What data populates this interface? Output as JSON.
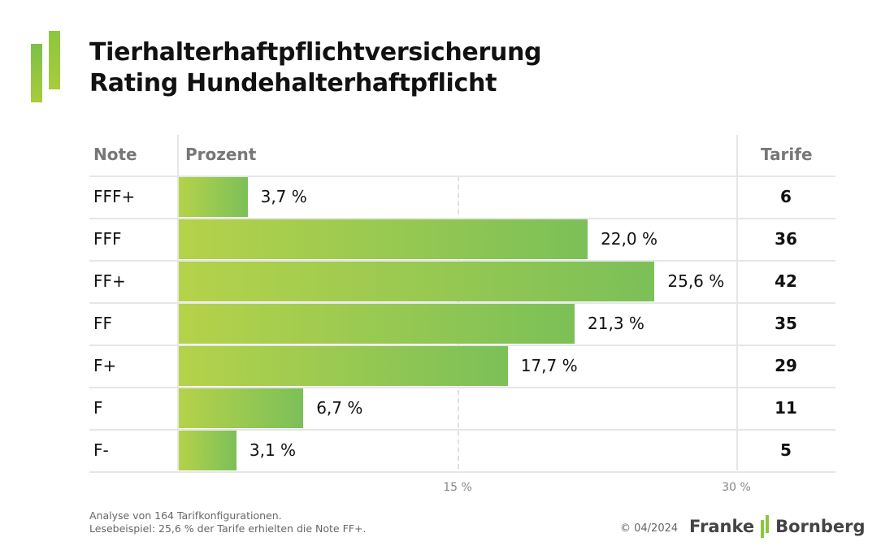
{
  "title": {
    "line1": "Tierhalterhaftpflichtversicherung",
    "line2": "Rating Hundehalterhaftpflicht"
  },
  "chart_data": {
    "type": "bar",
    "orientation": "horizontal",
    "title": "Tierhalterhaftpflichtversicherung Rating Hundehalterhaftpflicht",
    "columns": {
      "note": "Note",
      "percent": "Prozent",
      "tarife": "Tarife"
    },
    "rows": [
      {
        "note": "FFF+",
        "percent": 3.7,
        "percent_label": "3,7 %",
        "tarife": "6"
      },
      {
        "note": "FFF",
        "percent": 22.0,
        "percent_label": "22,0 %",
        "tarife": "36"
      },
      {
        "note": "FF+",
        "percent": 25.6,
        "percent_label": "25,6 %",
        "tarife": "42"
      },
      {
        "note": "FF",
        "percent": 21.3,
        "percent_label": "21,3 %",
        "tarife": "35"
      },
      {
        "note": "F+",
        "percent": 17.7,
        "percent_label": "17,7 %",
        "tarife": "29"
      },
      {
        "note": "F",
        "percent": 6.7,
        "percent_label": "6,7 %",
        "tarife": "11"
      },
      {
        "note": "F-",
        "percent": 3.1,
        "percent_label": "3,1 %",
        "tarife": "5"
      }
    ],
    "xlim": [
      0,
      30
    ],
    "ticks": [
      {
        "value": 15,
        "label": "15 %"
      },
      {
        "value": 30,
        "label": "30 %"
      }
    ],
    "grid": "dashed at 15 %"
  },
  "footnote": {
    "line1": "Analyse von 164 Tarifkonfigurationen.",
    "line2": "Lesebeispiel: 25,6 % der Tarife erhielten die Note FF+."
  },
  "copyright": "© 04/2024",
  "brand": {
    "left": "Franke",
    "right": "Bornberg"
  },
  "colors": {
    "bar_start": "#b5d24a",
    "bar_end": "#7cc058",
    "accent": "#8cc63f"
  }
}
